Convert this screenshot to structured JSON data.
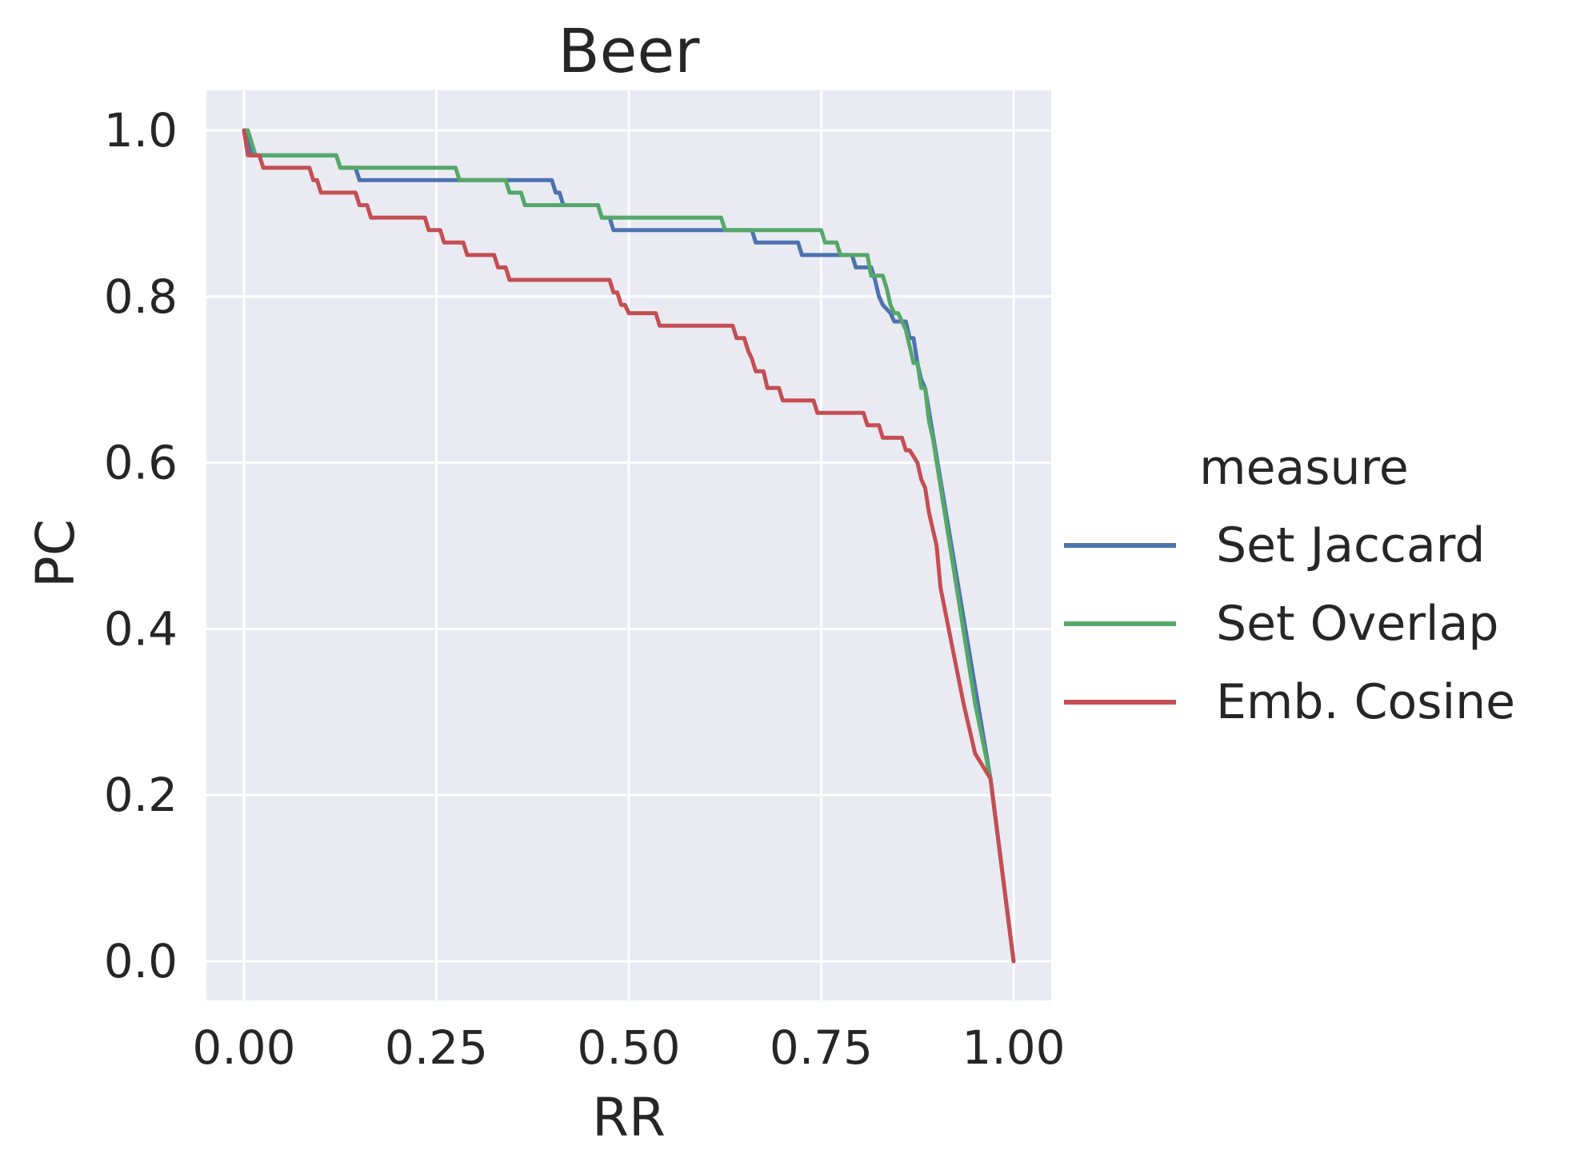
{
  "chart_data": {
    "type": "line",
    "title": "Beer",
    "xlabel": "RR",
    "ylabel": "PC",
    "xlim": [
      -0.05,
      1.05
    ],
    "ylim": [
      -0.05,
      1.05
    ],
    "xticks": [
      "0.00",
      "0.25",
      "0.50",
      "0.75",
      "1.00"
    ],
    "yticks": [
      "0.0",
      "0.2",
      "0.4",
      "0.6",
      "0.8",
      "1.0"
    ],
    "grid": true,
    "legend": {
      "title": "measure",
      "placement": "outside-right"
    },
    "series": [
      {
        "name": "Set Jaccard",
        "color": "#4c72b0",
        "x": [
          0.0,
          0.005,
          0.01,
          0.12,
          0.125,
          0.145,
          0.15,
          0.4,
          0.405,
          0.41,
          0.415,
          0.46,
          0.465,
          0.475,
          0.48,
          0.66,
          0.665,
          0.72,
          0.725,
          0.79,
          0.795,
          0.815,
          0.82,
          0.825,
          0.83,
          0.84,
          0.845,
          0.86,
          0.865,
          0.87,
          0.875,
          0.88,
          0.885,
          0.95,
          0.97,
          1.0
        ],
        "y": [
          1.0,
          0.985,
          0.97,
          0.97,
          0.955,
          0.955,
          0.94,
          0.94,
          0.925,
          0.925,
          0.91,
          0.91,
          0.895,
          0.895,
          0.88,
          0.88,
          0.865,
          0.865,
          0.85,
          0.85,
          0.835,
          0.835,
          0.82,
          0.8,
          0.79,
          0.78,
          0.77,
          0.77,
          0.75,
          0.75,
          0.72,
          0.7,
          0.69,
          0.33,
          0.22,
          0.0
        ]
      },
      {
        "name": "Set Overlap",
        "color": "#55a868",
        "x": [
          0.0,
          0.005,
          0.01,
          0.015,
          0.12,
          0.125,
          0.275,
          0.28,
          0.34,
          0.345,
          0.36,
          0.365,
          0.46,
          0.465,
          0.47,
          0.475,
          0.62,
          0.625,
          0.75,
          0.755,
          0.77,
          0.775,
          0.79,
          0.795,
          0.81,
          0.815,
          0.83,
          0.835,
          0.84,
          0.845,
          0.85,
          0.86,
          0.865,
          0.87,
          0.875,
          0.88,
          0.885,
          0.89,
          0.895,
          0.95,
          0.97,
          1.0
        ],
        "y": [
          1.0,
          1.0,
          0.985,
          0.97,
          0.97,
          0.955,
          0.955,
          0.94,
          0.94,
          0.925,
          0.925,
          0.91,
          0.91,
          0.895,
          0.895,
          0.895,
          0.895,
          0.88,
          0.88,
          0.865,
          0.865,
          0.85,
          0.85,
          0.85,
          0.85,
          0.825,
          0.825,
          0.81,
          0.79,
          0.78,
          0.78,
          0.76,
          0.74,
          0.72,
          0.72,
          0.69,
          0.69,
          0.65,
          0.63,
          0.31,
          0.22,
          0.0
        ]
      },
      {
        "name": "Emb. Cosine",
        "color": "#c44e52",
        "x": [
          0.0,
          0.005,
          0.02,
          0.025,
          0.085,
          0.09,
          0.095,
          0.1,
          0.145,
          0.15,
          0.16,
          0.165,
          0.235,
          0.24,
          0.255,
          0.26,
          0.285,
          0.29,
          0.325,
          0.33,
          0.34,
          0.345,
          0.475,
          0.48,
          0.485,
          0.49,
          0.495,
          0.5,
          0.535,
          0.54,
          0.635,
          0.64,
          0.65,
          0.655,
          0.66,
          0.665,
          0.675,
          0.68,
          0.695,
          0.7,
          0.74,
          0.745,
          0.805,
          0.81,
          0.825,
          0.83,
          0.855,
          0.86,
          0.865,
          0.875,
          0.88,
          0.885,
          0.89,
          0.9,
          0.905,
          0.92,
          0.935,
          0.95,
          0.97,
          1.0
        ],
        "y": [
          1.0,
          0.97,
          0.97,
          0.955,
          0.955,
          0.94,
          0.94,
          0.925,
          0.925,
          0.91,
          0.91,
          0.895,
          0.895,
          0.88,
          0.88,
          0.865,
          0.865,
          0.85,
          0.85,
          0.835,
          0.835,
          0.82,
          0.82,
          0.805,
          0.805,
          0.79,
          0.79,
          0.78,
          0.78,
          0.765,
          0.765,
          0.75,
          0.75,
          0.735,
          0.725,
          0.71,
          0.71,
          0.69,
          0.69,
          0.675,
          0.675,
          0.66,
          0.66,
          0.645,
          0.645,
          0.63,
          0.63,
          0.615,
          0.615,
          0.6,
          0.58,
          0.57,
          0.54,
          0.5,
          0.45,
          0.38,
          0.31,
          0.25,
          0.22,
          0.0
        ]
      }
    ]
  }
}
